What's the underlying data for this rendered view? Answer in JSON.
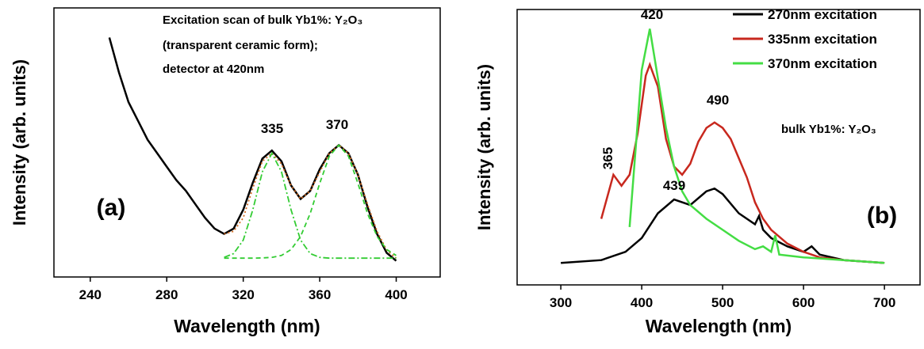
{
  "chart_data": [
    {
      "type": "line",
      "x_label": "Wavelength (nm)",
      "y_label": "Intensity (arb. units)",
      "xlim": [
        221,
        423
      ],
      "xticks": [
        240,
        280,
        320,
        360,
        400
      ],
      "ylim": [
        0,
        1
      ],
      "annotations": [
        "Excitation scan of bulk Yb1%: Y₂O₃",
        "(transparent ceramic form);",
        "detector at 420nm",
        "335",
        "370",
        "(a)"
      ],
      "series": [
        {
          "color": "#000000",
          "style": "solid",
          "x": [
            250,
            255,
            260,
            265,
            270,
            275,
            280,
            285,
            290,
            295,
            300,
            305,
            310,
            315,
            320,
            325,
            330,
            335,
            340,
            345,
            350,
            355,
            360,
            365,
            370,
            375,
            380,
            385,
            390,
            395,
            400
          ],
          "values": [
            0.89,
            0.76,
            0.65,
            0.58,
            0.51,
            0.46,
            0.41,
            0.36,
            0.32,
            0.27,
            0.22,
            0.18,
            0.16,
            0.18,
            0.25,
            0.35,
            0.44,
            0.47,
            0.43,
            0.34,
            0.29,
            0.32,
            0.4,
            0.46,
            0.49,
            0.46,
            0.38,
            0.26,
            0.16,
            0.09,
            0.06
          ]
        },
        {
          "color": "#d2691e",
          "style": "dotted",
          "x": [
            310,
            315,
            320,
            325,
            330,
            335,
            340,
            345,
            350,
            355,
            360,
            365,
            370,
            375,
            380,
            385,
            390,
            395,
            400
          ],
          "values": [
            0.16,
            0.17,
            0.22,
            0.33,
            0.43,
            0.46,
            0.42,
            0.34,
            0.29,
            0.32,
            0.39,
            0.46,
            0.49,
            0.46,
            0.38,
            0.27,
            0.17,
            0.1,
            0.07
          ]
        },
        {
          "color": "#33cc33",
          "style": "dashdot",
          "x": [
            310,
            315,
            320,
            325,
            330,
            335,
            340,
            345,
            350,
            355,
            360,
            365,
            370,
            375,
            380,
            385,
            390,
            395,
            400
          ],
          "values": [
            0.073,
            0.087,
            0.137,
            0.249,
            0.391,
            0.46,
            0.391,
            0.249,
            0.137,
            0.087,
            0.073,
            0.07,
            0.07,
            0.07,
            0.07,
            0.07,
            0.07,
            0.07,
            0.07
          ]
        },
        {
          "color": "#33cc33",
          "style": "dashed",
          "x": [
            310,
            315,
            320,
            325,
            330,
            335,
            340,
            345,
            350,
            355,
            360,
            365,
            370,
            375,
            380,
            385,
            390,
            395,
            400
          ],
          "values": [
            0.07,
            0.07,
            0.07,
            0.07,
            0.071,
            0.073,
            0.08,
            0.102,
            0.151,
            0.236,
            0.348,
            0.449,
            0.49,
            0.449,
            0.348,
            0.236,
            0.151,
            0.102,
            0.08
          ]
        }
      ]
    },
    {
      "type": "line",
      "x_label": "Wavelength (nm)",
      "y_label": "Intensity (arb. units)",
      "xlim": [
        246,
        744
      ],
      "xticks": [
        300,
        400,
        500,
        600,
        700
      ],
      "ylim": [
        0,
        1
      ],
      "legend": "top-right",
      "annotations": [
        "bulk Yb1%: Y₂O₃",
        "420",
        "490",
        "365",
        "439",
        "(b)"
      ],
      "series": [
        {
          "name": "270nm excitation",
          "color": "#000000",
          "style": "solid",
          "x": [
            300,
            350,
            380,
            400,
            420,
            440,
            460,
            480,
            490,
            500,
            520,
            540,
            545,
            550,
            560,
            580,
            600,
            610,
            620,
            650,
            700
          ],
          "values": [
            0.08,
            0.09,
            0.12,
            0.17,
            0.26,
            0.31,
            0.29,
            0.34,
            0.35,
            0.33,
            0.26,
            0.22,
            0.25,
            0.2,
            0.17,
            0.14,
            0.12,
            0.14,
            0.11,
            0.09,
            0.08
          ]
        },
        {
          "name": "335nm excitation",
          "color": "#c8281e",
          "style": "solid",
          "x": [
            350,
            365,
            375,
            385,
            395,
            405,
            410,
            420,
            430,
            440,
            450,
            460,
            470,
            480,
            490,
            500,
            510,
            520,
            530,
            540,
            550,
            560,
            580,
            600,
            620,
            650,
            700
          ],
          "values": [
            0.24,
            0.4,
            0.36,
            0.4,
            0.55,
            0.76,
            0.8,
            0.72,
            0.53,
            0.43,
            0.4,
            0.44,
            0.52,
            0.57,
            0.59,
            0.57,
            0.53,
            0.46,
            0.39,
            0.3,
            0.24,
            0.2,
            0.15,
            0.12,
            0.1,
            0.09,
            0.08
          ]
        },
        {
          "name": "370nm excitation",
          "color": "#44dd44",
          "style": "solid",
          "x": [
            385,
            390,
            400,
            410,
            420,
            430,
            440,
            450,
            460,
            480,
            500,
            520,
            540,
            550,
            560,
            565,
            570,
            600,
            650,
            700
          ],
          "values": [
            0.21,
            0.4,
            0.78,
            0.93,
            0.75,
            0.57,
            0.43,
            0.34,
            0.29,
            0.24,
            0.2,
            0.16,
            0.13,
            0.14,
            0.12,
            0.18,
            0.11,
            0.1,
            0.09,
            0.08
          ]
        }
      ]
    }
  ]
}
